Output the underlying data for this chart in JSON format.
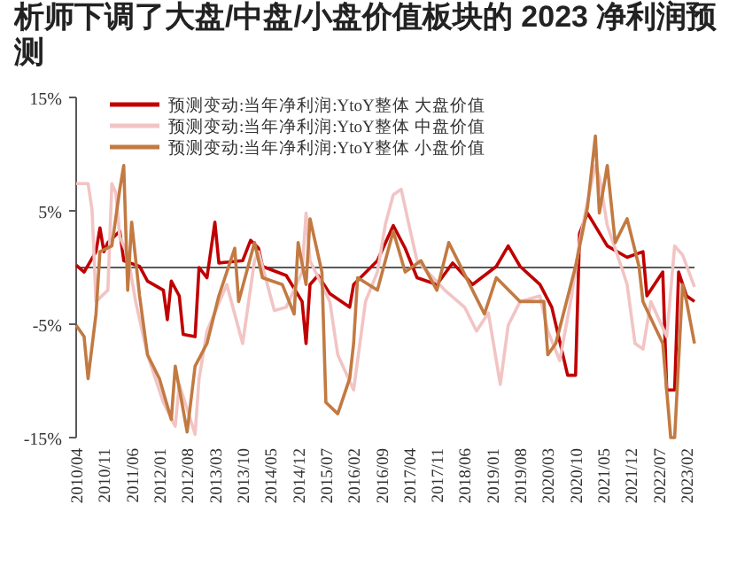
{
  "chart_data": {
    "type": "line",
    "title": "析师下调了大盘/中盘/小盘价值板块的 2023 净利润预测",
    "ylim": [
      -15,
      15
    ],
    "yticks": [
      {
        "value": 15,
        "label": "15%"
      },
      {
        "value": 5,
        "label": "5%"
      },
      {
        "value": -5,
        "label": "-5%"
      },
      {
        "value": -15,
        "label": "-15%"
      }
    ],
    "xlim": [
      "2010-04",
      "2023-04"
    ],
    "xticks": [
      {
        "value": "2010-04",
        "label": "2010/04"
      },
      {
        "value": "2010-11",
        "label": "2010/11"
      },
      {
        "value": "2011-06",
        "label": "2011/06"
      },
      {
        "value": "2012-01",
        "label": "2012/01"
      },
      {
        "value": "2012-08",
        "label": "2012/08"
      },
      {
        "value": "2013-03",
        "label": "2013/03"
      },
      {
        "value": "2013-10",
        "label": "2013/10"
      },
      {
        "value": "2014-05",
        "label": "2014/05"
      },
      {
        "value": "2014-12",
        "label": "2014/12"
      },
      {
        "value": "2015-07",
        "label": "2015/07"
      },
      {
        "value": "2016-02",
        "label": "2016/02"
      },
      {
        "value": "2016-09",
        "label": "2016/09"
      },
      {
        "value": "2017-04",
        "label": "2017/04"
      },
      {
        "value": "2017-11",
        "label": "2017/11"
      },
      {
        "value": "2018-06",
        "label": "2018/06"
      },
      {
        "value": "2019-01",
        "label": "2019/01"
      },
      {
        "value": "2019-08",
        "label": "2019/08"
      },
      {
        "value": "2020-03",
        "label": "2020/03"
      },
      {
        "value": "2020-10",
        "label": "2020/10"
      },
      {
        "value": "2021-05",
        "label": "2021/05"
      },
      {
        "value": "2021-12",
        "label": "2021/12"
      },
      {
        "value": "2022-07",
        "label": "2022/07"
      },
      {
        "value": "2023-02",
        "label": "2023/02"
      }
    ],
    "ref_lines": [
      {
        "axis": "y",
        "value": 0,
        "color": "#595959"
      }
    ],
    "legend": "top",
    "grid": false,
    "marker": "none",
    "line_style": "solid",
    "series": [
      {
        "name": "预测变动:当年净利润:YtoY整体 大盘价值",
        "color": "#c00000",
        "x": [
          "2010-04",
          "2010-06",
          "2010-09",
          "2010-10",
          "2010-11",
          "2010-12",
          "2011-03",
          "2011-04",
          "2011-08",
          "2011-10",
          "2012-02",
          "2012-03",
          "2012-04",
          "2012-06",
          "2012-07",
          "2012-10",
          "2012-11",
          "2013-01",
          "2013-03",
          "2013-04",
          "2013-10",
          "2013-12",
          "2014-02",
          "2014-03",
          "2014-09",
          "2015-01",
          "2015-02",
          "2015-03",
          "2015-05",
          "2015-08",
          "2016-01",
          "2016-02",
          "2016-08",
          "2016-12",
          "2017-03",
          "2017-06",
          "2017-11",
          "2018-03",
          "2018-08",
          "2019-02",
          "2019-05",
          "2019-08",
          "2020-01",
          "2020-04",
          "2020-08",
          "2020-10",
          "2020-11",
          "2021-01",
          "2021-06",
          "2021-11",
          "2022-03",
          "2022-04",
          "2022-08",
          "2022-09",
          "2022-11",
          "2022-12",
          "2023-02",
          "2023-04"
        ],
        "values": [
          0.2,
          -0.4,
          1.4,
          3.5,
          1.4,
          2.2,
          3.2,
          0.6,
          0.1,
          -1.2,
          -2.0,
          -4.6,
          -1.2,
          -2.5,
          -5.9,
          -6.1,
          0.0,
          -0.9,
          4.0,
          0.4,
          0.6,
          2.4,
          1.7,
          0.1,
          -0.7,
          -3.0,
          -6.7,
          -1.5,
          -0.7,
          -2.3,
          -3.5,
          -1.5,
          0.6,
          3.7,
          1.7,
          -0.9,
          -1.5,
          0.4,
          -1.5,
          0.1,
          1.9,
          0.1,
          -1.5,
          -3.5,
          -9.5,
          -9.5,
          3.0,
          4.8,
          1.9,
          0.9,
          1.4,
          -2.5,
          -0.4,
          -10.8,
          -10.8,
          -0.4,
          -2.5,
          -3.0
        ]
      },
      {
        "name": "预测变动:当年净利润:YtoY整体 中盘价值",
        "color": "#f2c4c4",
        "x": [
          "2010-04",
          "2010-07",
          "2010-08",
          "2010-09",
          "2010-12",
          "2011-01",
          "2011-02",
          "2011-03",
          "2011-05",
          "2011-07",
          "2011-10",
          "2012-02",
          "2012-05",
          "2012-06",
          "2012-10",
          "2012-11",
          "2013-01",
          "2013-06",
          "2013-10",
          "2014-01",
          "2014-02",
          "2014-06",
          "2014-09",
          "2015-01",
          "2015-02",
          "2015-03",
          "2015-08",
          "2015-10",
          "2016-02",
          "2016-05",
          "2016-08",
          "2016-10",
          "2016-12",
          "2017-02",
          "2017-04",
          "2017-06",
          "2018-01",
          "2018-06",
          "2018-09",
          "2018-12",
          "2019-03",
          "2019-05",
          "2019-08",
          "2020-01",
          "2020-03",
          "2020-06",
          "2020-09",
          "2020-11",
          "2021-01",
          "2021-03",
          "2021-04",
          "2021-06",
          "2021-10",
          "2021-11",
          "2022-01",
          "2022-03",
          "2022-05",
          "2022-09",
          "2022-11",
          "2023-01",
          "2023-04"
        ],
        "values": [
          7.4,
          7.4,
          5.1,
          -3.0,
          -2.0,
          7.4,
          6.6,
          2.7,
          1.1,
          -3.0,
          -7.7,
          -11.9,
          -14.0,
          -10.3,
          -14.7,
          -9.8,
          -5.6,
          -1.5,
          -6.7,
          0.6,
          1.4,
          -3.8,
          -3.5,
          -0.4,
          4.8,
          0.6,
          -3.0,
          -7.7,
          -10.8,
          -3.0,
          -0.4,
          3.8,
          6.4,
          6.9,
          3.7,
          0.6,
          -2.0,
          -3.5,
          -5.6,
          -4.0,
          -10.3,
          -5.1,
          -3.0,
          -2.5,
          -5.6,
          -8.2,
          -2.5,
          2.2,
          5.8,
          9.0,
          8.0,
          3.7,
          -0.4,
          -1.5,
          -6.7,
          -7.2,
          -3.0,
          -6.1,
          1.9,
          1.1,
          -1.7
        ]
      },
      {
        "name": "预测变动:当年净利润:YtoY整体 小盘价值",
        "color": "#c27a42",
        "x": [
          "2010-04",
          "2010-06",
          "2010-07",
          "2010-09",
          "2010-10",
          "2011-01",
          "2011-03",
          "2011-04",
          "2011-05",
          "2011-06",
          "2011-08",
          "2011-10",
          "2012-01",
          "2012-04",
          "2012-05",
          "2012-08",
          "2012-10",
          "2013-01",
          "2013-04",
          "2013-08",
          "2013-09",
          "2014-01",
          "2014-03",
          "2014-08",
          "2014-11",
          "2014-12",
          "2015-02",
          "2015-03",
          "2015-06",
          "2015-07",
          "2015-10",
          "2016-01",
          "2016-02",
          "2016-03",
          "2016-08",
          "2016-12",
          "2017-03",
          "2017-07",
          "2017-11",
          "2018-02",
          "2018-08",
          "2018-11",
          "2019-02",
          "2019-08",
          "2020-02",
          "2020-03",
          "2020-05",
          "2020-10",
          "2021-01",
          "2021-03",
          "2021-04",
          "2021-06",
          "2021-08",
          "2021-11",
          "2022-02",
          "2022-03",
          "2022-08",
          "2022-10",
          "2022-11",
          "2023-01",
          "2023-02",
          "2023-04"
        ],
        "values": [
          -5.1,
          -6.1,
          -9.8,
          -4.1,
          1.4,
          1.9,
          6.9,
          9.0,
          -2.0,
          4.0,
          -2.5,
          -7.7,
          -9.8,
          -13.4,
          -8.7,
          -14.5,
          -8.7,
          -6.7,
          -2.5,
          1.7,
          -3.0,
          2.2,
          -0.9,
          -1.5,
          -4.1,
          2.2,
          -1.5,
          4.3,
          -0.4,
          -11.9,
          -12.9,
          -9.8,
          -6.7,
          -0.9,
          -2.0,
          3.2,
          -0.4,
          0.6,
          -2.0,
          2.2,
          -2.0,
          -4.1,
          -0.9,
          -3.0,
          -3.0,
          -7.7,
          -6.7,
          0.1,
          5.3,
          11.6,
          4.8,
          9.0,
          2.2,
          4.3,
          0.1,
          -3.0,
          -6.7,
          -15.0,
          -15.0,
          -1.5,
          -3.0,
          -6.7
        ]
      }
    ]
  }
}
